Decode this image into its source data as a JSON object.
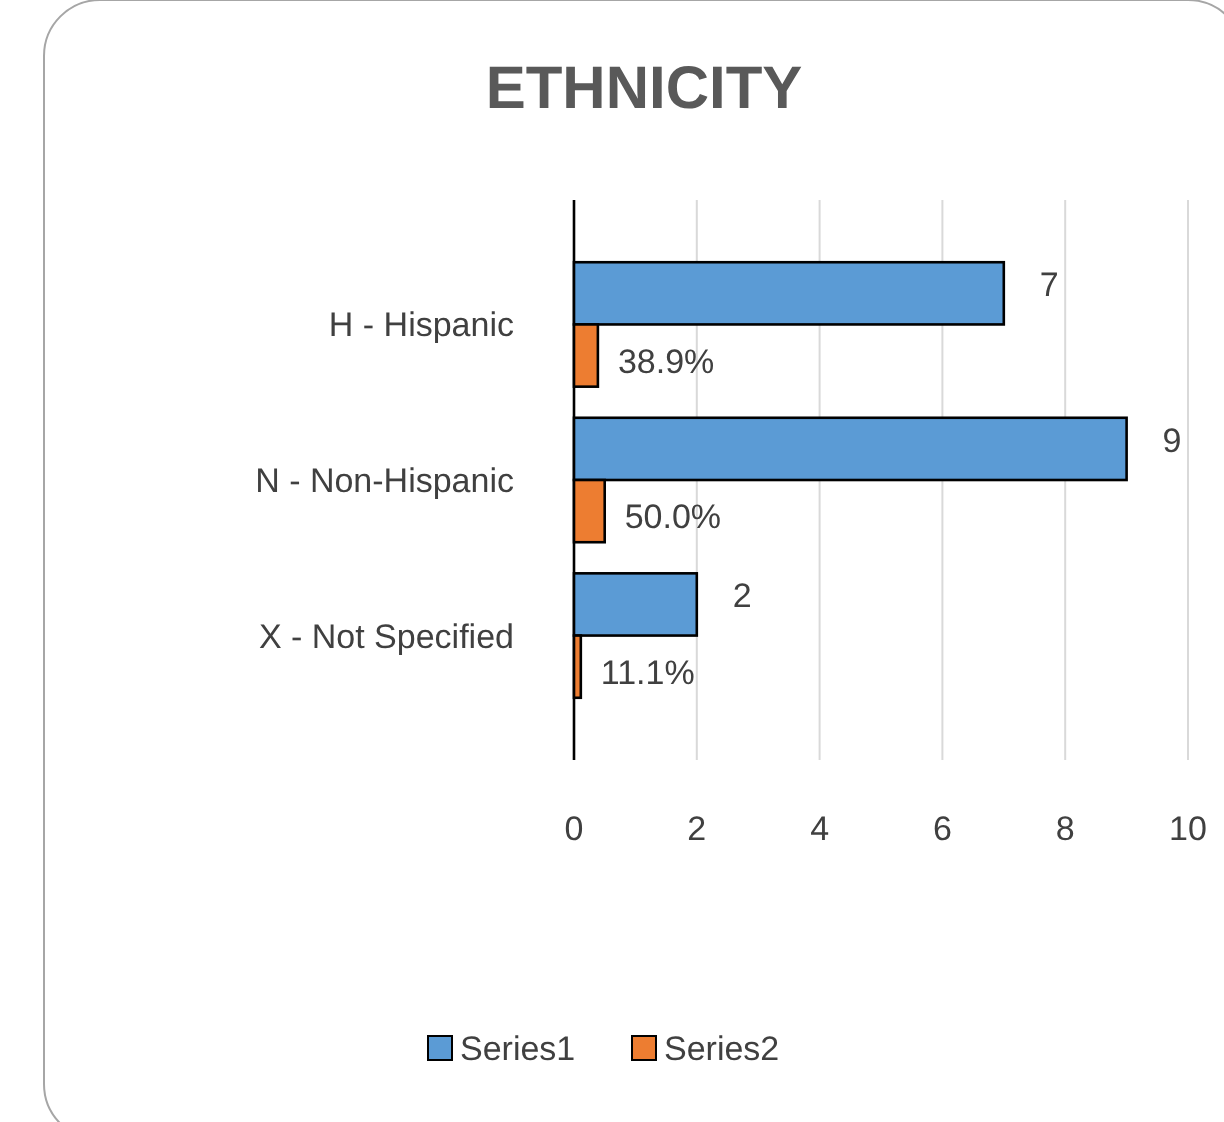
{
  "chart_data": {
    "type": "bar",
    "orientation": "horizontal",
    "title": "ETHNICITY",
    "categories": [
      "H - Hispanic",
      "N - Non-Hispanic",
      "X - Not Specified"
    ],
    "series": [
      {
        "name": "Series1",
        "color": "#5b9bd5",
        "values": [
          7,
          9,
          2
        ],
        "value_labels": [
          "7",
          "9",
          "2"
        ]
      },
      {
        "name": "Series2",
        "color": "#ed7d31",
        "values": [
          0.389,
          0.5,
          0.111
        ],
        "value_labels": [
          "38.9%",
          "50.0%",
          "11.1%"
        ]
      }
    ],
    "xlim": [
      0,
      10
    ],
    "xticks": [
      0,
      2,
      4,
      6,
      8,
      10
    ],
    "grid": "x",
    "legend": "bottom"
  }
}
